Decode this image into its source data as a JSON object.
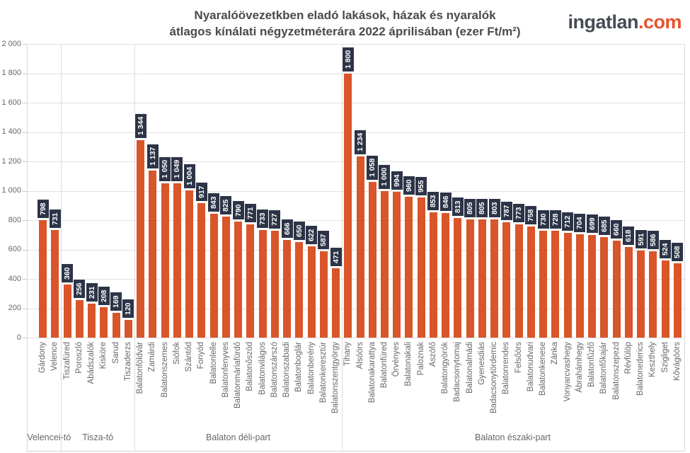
{
  "header": {
    "title_line1": "Nyaralóövezetkben eladó lakások, házak és nyaralók",
    "title_line2": "átlagos kínálati négyzetméterára 2022 áprilisában (ezer Ft/m²)",
    "logo_name": "ingatlan",
    "logo_tld": ".com"
  },
  "chart_data": {
    "type": "bar",
    "title": "Nyaralóövezetkben eladó lakások, házak és nyaralók átlagos kínálati négyzetméterára 2022 áprilisában (ezer Ft/m²)",
    "unit": "ezer Ft/m²",
    "ylim": [
      0,
      2000
    ],
    "ytick_step": 200,
    "grid": true,
    "legend": "none",
    "bar_color": "#d9552a",
    "value_label_bg": "#2d3447",
    "value_label_text": "#ffffff",
    "groups": [
      {
        "label": "Velencei-tó",
        "categories": [
          "Gárdony",
          "Velence"
        ],
        "values": [
          798,
          731
        ]
      },
      {
        "label": "Tisza-tó",
        "categories": [
          "Tiszafüred",
          "Poroszló",
          "Abádszalók",
          "Kisköre",
          "Sarud",
          "Tiszaderzs"
        ],
        "values": [
          360,
          256,
          231,
          208,
          169,
          120
        ]
      },
      {
        "label": "Balaton déli-part",
        "categories": [
          "Balatonföldvár",
          "Zamárdi",
          "Balatonszemes",
          "Siófok",
          "Szántód",
          "Fonyód",
          "Balatonlelle",
          "Balatonfenyves",
          "Balatonmáriafürdő",
          "Balatonőszöd",
          "Balatonvilágos",
          "Balatonszárszó",
          "Balatonszabadi",
          "Balatonboglár",
          "Balatonberény",
          "Balatonkeresztúr",
          "Balatonszentgyörgy"
        ],
        "values": [
          1344,
          1137,
          1050,
          1049,
          1004,
          917,
          843,
          825,
          790,
          771,
          733,
          727,
          666,
          650,
          622,
          587,
          471
        ]
      },
      {
        "label": "Balaton északi-part",
        "categories": [
          "Tihany",
          "Alsóörs",
          "Balatonakarattya",
          "Balatonfüred",
          "Örvényes",
          "Balatonakali",
          "Paloznak",
          "Aszófő",
          "Balatongyörök",
          "Badacsonytomaj",
          "Balatonalmádi",
          "Gyenesdiás",
          "Badacsonytördemic",
          "Balatonrendes",
          "Felsőörs",
          "Balatonudvari",
          "Balatonkenese",
          "Zánka",
          "Vonyarcvashegy",
          "Ábrahámhegy",
          "Balatonfűzfő",
          "Balatonfőkajár",
          "Balatonszepezd",
          "Révfülöp",
          "Balatonederics",
          "Keszthely",
          "Szigliget",
          "Kővágóörs"
        ],
        "values": [
          1800,
          1234,
          1058,
          1000,
          994,
          960,
          955,
          853,
          846,
          813,
          805,
          805,
          803,
          787,
          773,
          758,
          730,
          728,
          712,
          704,
          699,
          685,
          660,
          618,
          591,
          586,
          524,
          508
        ]
      }
    ]
  }
}
